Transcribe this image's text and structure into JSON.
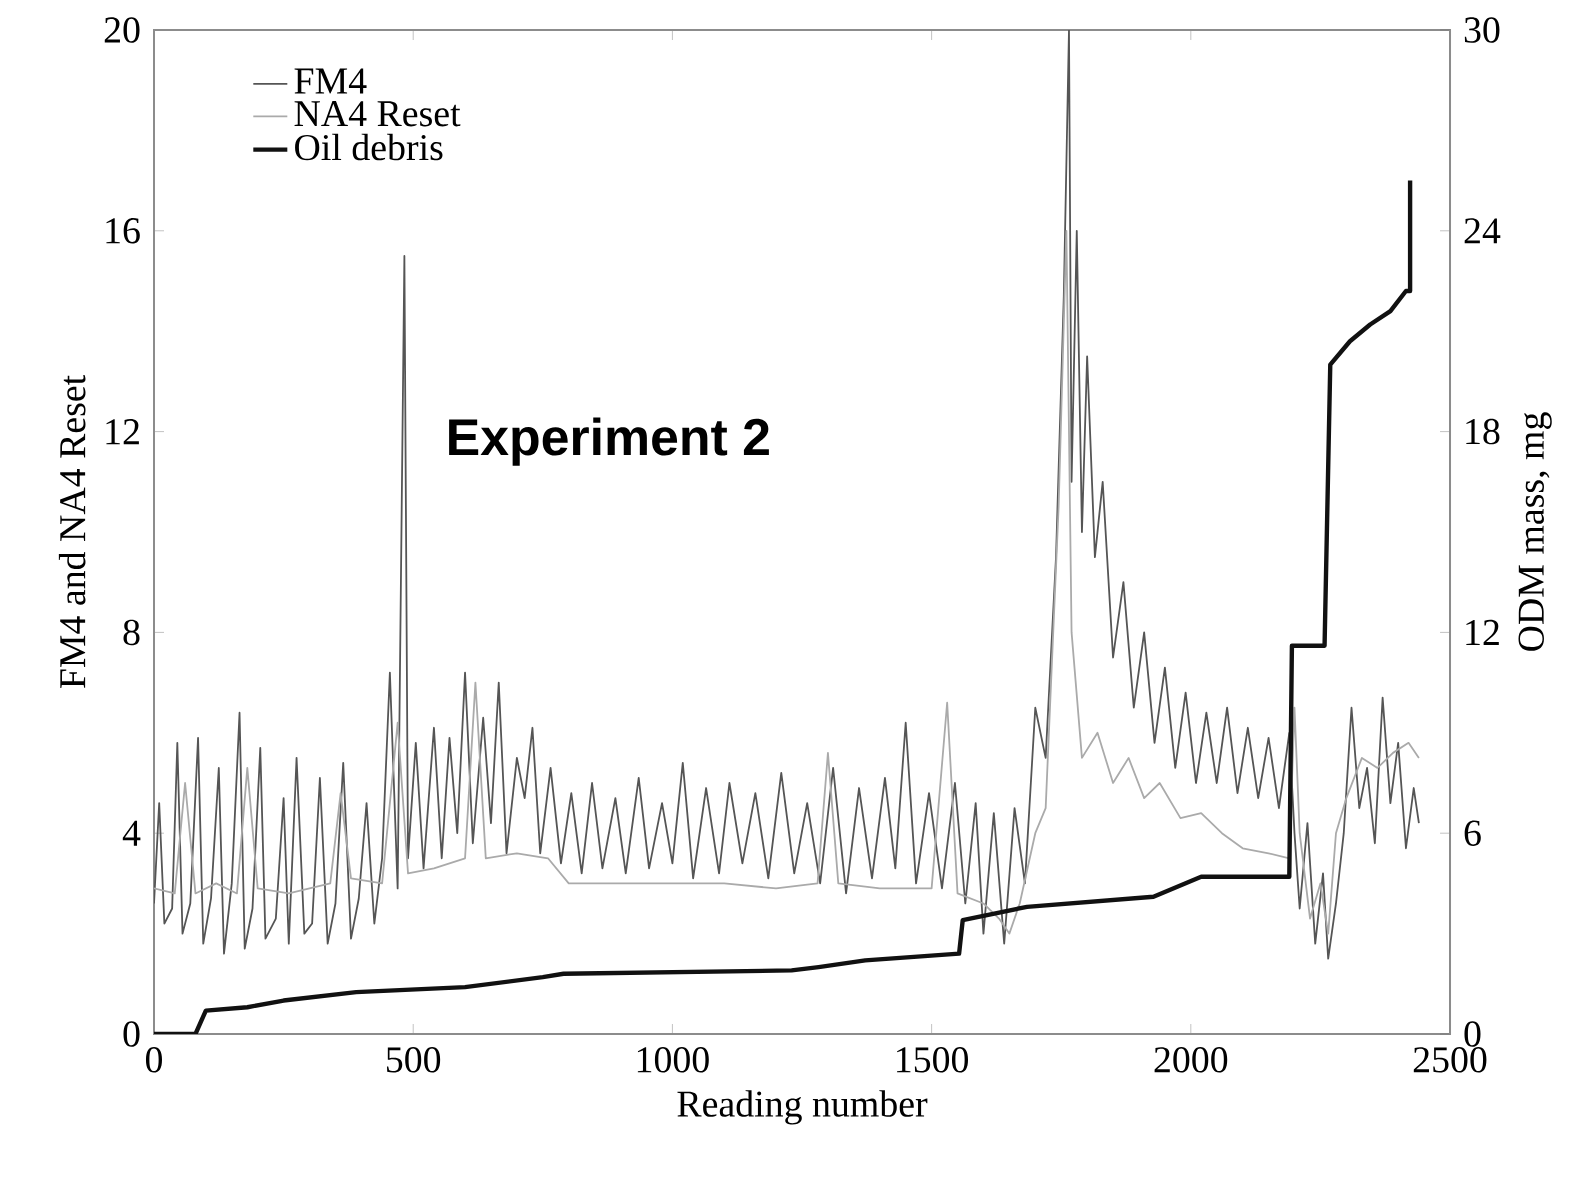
{
  "chart_data": {
    "type": "line",
    "xlabel": "Reading number",
    "ylabel": "FM4 and NA4 Reset",
    "y2label": "ODM mass, mg",
    "annotations": [
      "Experiment 2"
    ],
    "xlim": [
      0,
      2500
    ],
    "xticks": [
      0,
      500,
      1000,
      1500,
      2000,
      2500
    ],
    "ylim": [
      0,
      20
    ],
    "yticks": [
      0,
      4,
      8,
      12,
      16,
      20
    ],
    "y2lim": [
      0,
      30
    ],
    "y2ticks": [
      0,
      6,
      12,
      18,
      24,
      30
    ],
    "legend": "top left",
    "grid": false,
    "series": [
      {
        "name": "FM4",
        "color": "#555555",
        "x": [
          0,
          10,
          20,
          35,
          45,
          55,
          70,
          85,
          95,
          110,
          125,
          135,
          150,
          165,
          175,
          190,
          205,
          215,
          235,
          250,
          260,
          275,
          290,
          305,
          320,
          335,
          350,
          365,
          380,
          395,
          410,
          425,
          440,
          455,
          470,
          483,
          490,
          505,
          520,
          540,
          555,
          570,
          585,
          600,
          615,
          635,
          650,
          665,
          680,
          700,
          715,
          730,
          745,
          765,
          785,
          805,
          825,
          845,
          865,
          890,
          910,
          935,
          955,
          980,
          1000,
          1020,
          1040,
          1065,
          1090,
          1110,
          1135,
          1160,
          1185,
          1210,
          1235,
          1260,
          1285,
          1310,
          1335,
          1360,
          1385,
          1410,
          1430,
          1450,
          1470,
          1495,
          1520,
          1545,
          1565,
          1585,
          1600,
          1620,
          1640,
          1660,
          1680,
          1700,
          1720,
          1740,
          1755,
          1765,
          1770,
          1780,
          1790,
          1800,
          1815,
          1830,
          1850,
          1870,
          1890,
          1910,
          1930,
          1950,
          1970,
          1990,
          2010,
          2030,
          2050,
          2070,
          2090,
          2110,
          2130,
          2150,
          2170,
          2190,
          2200,
          2210,
          2225,
          2240,
          2255,
          2265,
          2280,
          2295,
          2310,
          2325,
          2340,
          2355,
          2370,
          2385,
          2400,
          2415,
          2430,
          2440
        ],
        "values": [
          2.6,
          4.6,
          2.2,
          2.5,
          5.8,
          2.0,
          2.6,
          5.9,
          1.8,
          2.7,
          5.3,
          1.6,
          3.0,
          6.4,
          1.7,
          2.5,
          5.7,
          1.9,
          2.3,
          4.7,
          1.8,
          5.5,
          2.0,
          2.2,
          5.1,
          1.8,
          2.6,
          5.4,
          1.9,
          2.7,
          4.6,
          2.2,
          3.5,
          7.2,
          2.9,
          15.5,
          3.5,
          5.8,
          3.3,
          6.1,
          3.5,
          5.9,
          4.0,
          7.2,
          3.8,
          6.3,
          4.2,
          7.0,
          3.6,
          5.5,
          4.7,
          6.1,
          3.6,
          5.3,
          3.4,
          4.8,
          3.2,
          5.0,
          3.3,
          4.7,
          3.2,
          5.1,
          3.3,
          4.6,
          3.4,
          5.4,
          3.1,
          4.9,
          3.2,
          5.0,
          3.4,
          4.8,
          3.1,
          5.2,
          3.2,
          4.6,
          3.0,
          5.3,
          2.8,
          4.9,
          3.1,
          5.1,
          3.3,
          6.2,
          3.0,
          4.8,
          2.9,
          5.0,
          2.6,
          4.6,
          2.0,
          4.4,
          1.8,
          4.5,
          3.0,
          6.5,
          5.5,
          9.5,
          14.7,
          20.0,
          11.0,
          16.0,
          10.0,
          13.5,
          9.5,
          11.0,
          7.5,
          9.0,
          6.5,
          8.0,
          5.8,
          7.3,
          5.3,
          6.8,
          5.0,
          6.4,
          5.0,
          6.5,
          4.8,
          6.1,
          4.7,
          5.9,
          4.5,
          6.0,
          4.0,
          2.5,
          4.2,
          1.8,
          3.2,
          1.5,
          2.6,
          4.0,
          6.5,
          4.5,
          5.3,
          3.8,
          6.7,
          4.6,
          5.8,
          3.7,
          4.9,
          4.2
        ]
      },
      {
        "name": "NA4 Reset",
        "color": "#aaaaaa",
        "x": [
          0,
          40,
          60,
          80,
          120,
          160,
          180,
          200,
          260,
          300,
          340,
          360,
          380,
          440,
          470,
          490,
          540,
          600,
          620,
          640,
          700,
          760,
          800,
          900,
          1000,
          1100,
          1200,
          1280,
          1300,
          1320,
          1400,
          1500,
          1530,
          1550,
          1600,
          1630,
          1650,
          1670,
          1700,
          1720,
          1745,
          1760,
          1770,
          1790,
          1820,
          1850,
          1880,
          1910,
          1940,
          1980,
          2020,
          2060,
          2100,
          2150,
          2190,
          2200,
          2210,
          2230,
          2250,
          2265,
          2280,
          2300,
          2330,
          2360,
          2390,
          2420,
          2440
        ],
        "values": [
          2.9,
          2.8,
          5.0,
          2.8,
          3.0,
          2.8,
          5.3,
          2.9,
          2.8,
          2.9,
          3.0,
          4.8,
          3.1,
          3.0,
          6.2,
          3.2,
          3.3,
          3.5,
          7.0,
          3.5,
          3.6,
          3.5,
          3.0,
          3.0,
          3.0,
          3.0,
          2.9,
          3.0,
          5.6,
          3.0,
          2.9,
          2.9,
          6.6,
          2.8,
          2.6,
          2.3,
          2.0,
          2.6,
          4.0,
          4.5,
          10.5,
          16.0,
          8.0,
          5.5,
          6.0,
          5.0,
          5.5,
          4.7,
          5.0,
          4.3,
          4.4,
          4.0,
          3.7,
          3.6,
          3.5,
          6.5,
          4.0,
          2.3,
          3.0,
          2.0,
          4.0,
          4.7,
          5.5,
          5.3,
          5.6,
          5.8,
          5.5
        ]
      },
      {
        "name": "Oil debris",
        "color": "#111111",
        "axis": "y2",
        "x": [
          0,
          80,
          100,
          180,
          250,
          390,
          600,
          750,
          790,
          1230,
          1282,
          1372,
          1553,
          1560,
          1684,
          1928,
          2020,
          2190,
          2195,
          2258,
          2269,
          2307,
          2346,
          2385,
          2415,
          2423,
          2423
        ],
        "values": [
          0,
          0,
          0.7,
          0.8,
          1.0,
          1.25,
          1.4,
          1.7,
          1.8,
          1.9,
          2.0,
          2.2,
          2.4,
          3.4,
          3.8,
          4.1,
          4.7,
          4.7,
          11.6,
          11.6,
          20.0,
          20.7,
          21.2,
          21.6,
          22.2,
          22.2,
          25.5
        ]
      }
    ]
  }
}
